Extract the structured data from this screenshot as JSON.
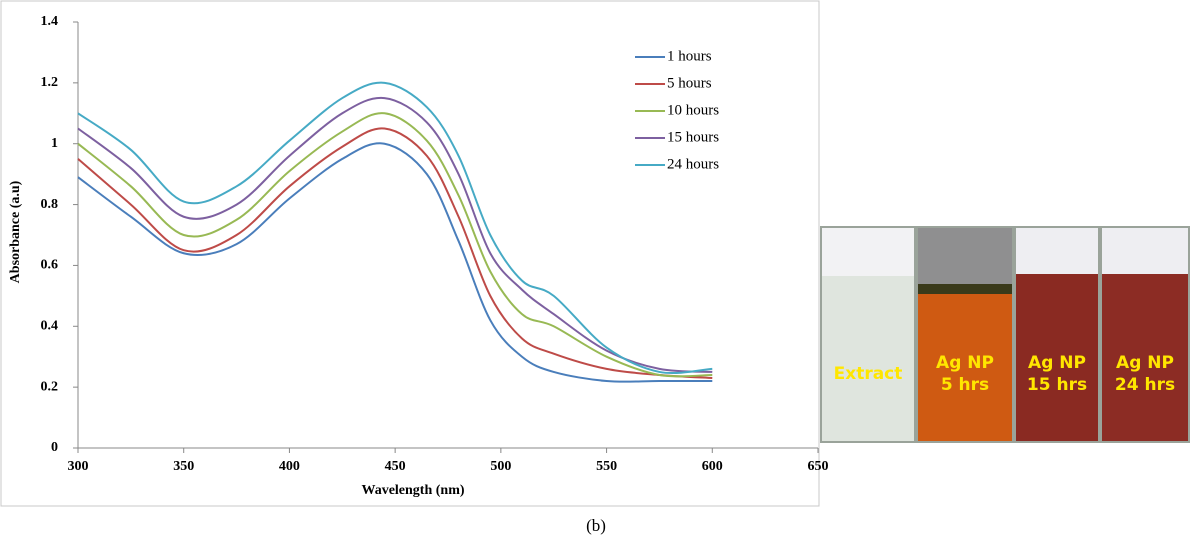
{
  "chart_data": {
    "type": "line",
    "xlabel": "Wavelength (nm)",
    "ylabel": "Absorbance (a.u)",
    "x": [
      300,
      325,
      350,
      375,
      400,
      425,
      445,
      465,
      480,
      495,
      510,
      525,
      550,
      575,
      600
    ],
    "series": [
      {
        "name": "1 hours",
        "color": "#4a7ebb",
        "values": [
          0.89,
          0.76,
          0.64,
          0.67,
          0.82,
          0.95,
          1.0,
          0.9,
          0.68,
          0.42,
          0.3,
          0.25,
          0.22,
          0.22,
          0.22
        ]
      },
      {
        "name": "5 hours",
        "color": "#be4b48",
        "values": [
          0.95,
          0.8,
          0.65,
          0.7,
          0.86,
          0.99,
          1.05,
          0.96,
          0.76,
          0.5,
          0.36,
          0.31,
          0.26,
          0.24,
          0.23
        ]
      },
      {
        "name": "10 hours",
        "color": "#98b954",
        "values": [
          1.0,
          0.86,
          0.7,
          0.75,
          0.91,
          1.04,
          1.1,
          1.01,
          0.83,
          0.58,
          0.44,
          0.4,
          0.3,
          0.24,
          0.24
        ]
      },
      {
        "name": "15 hours",
        "color": "#7d60a0",
        "values": [
          1.05,
          0.92,
          0.76,
          0.8,
          0.96,
          1.1,
          1.15,
          1.07,
          0.9,
          0.64,
          0.52,
          0.44,
          0.32,
          0.26,
          0.25
        ]
      },
      {
        "name": "24 hours",
        "color": "#46aac5",
        "values": [
          1.1,
          0.98,
          0.81,
          0.86,
          1.01,
          1.15,
          1.2,
          1.12,
          0.96,
          0.7,
          0.55,
          0.5,
          0.33,
          0.25,
          0.26
        ]
      }
    ],
    "xlim": [
      300,
      650
    ],
    "xticks": [
      300,
      350,
      400,
      450,
      500,
      550,
      600,
      650
    ],
    "ylim": [
      0,
      1.4
    ],
    "yticks": [
      0,
      0.2,
      0.4,
      0.6,
      0.8,
      1,
      1.2,
      1.4
    ],
    "legend": "upper right"
  },
  "photo": {
    "vials": [
      [
        "Extract"
      ],
      [
        "Ag NP",
        "5 hrs"
      ],
      [
        "Ag NP",
        "15 hrs"
      ],
      [
        "Ag NP",
        "24 hrs"
      ]
    ]
  },
  "caption": "(b)"
}
